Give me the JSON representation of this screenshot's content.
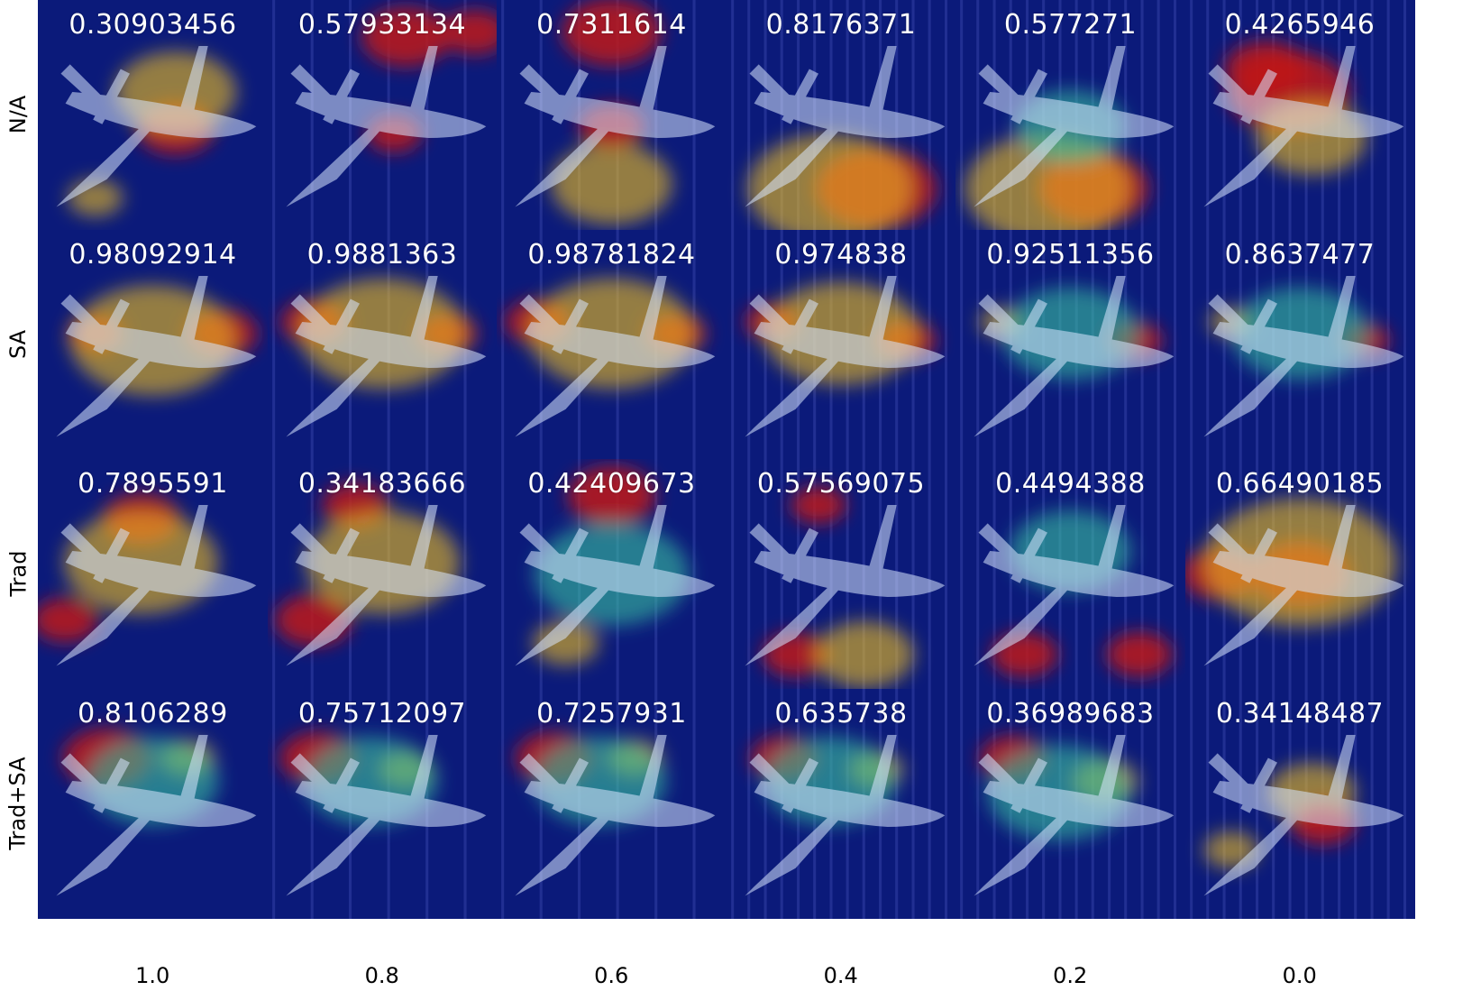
{
  "row_labels": [
    "N/A",
    "SA",
    "Trad",
    "Trad+SA"
  ],
  "col_labels": [
    "1.0",
    "0.8",
    "0.6",
    "0.4",
    "0.2",
    "0.0"
  ],
  "scores": [
    [
      "0.30903456",
      "0.57933134",
      "0.7311614",
      "0.8176371",
      "0.577271",
      "0.4265946"
    ],
    [
      "0.98092914",
      "0.9881363",
      "0.98781824",
      "0.974838",
      "0.92511356",
      "0.8637477"
    ],
    [
      "0.7895591",
      "0.34183666",
      "0.42409673",
      "0.57569075",
      "0.4494388",
      "0.66490185"
    ],
    [
      "0.8106289",
      "0.75712097",
      "0.7257931",
      "0.635738",
      "0.36989683",
      "0.34148487"
    ]
  ],
  "colors": {
    "background_dark": "#0b1a7a",
    "heat_hot": "#c01414",
    "heat_warm": "#f0c020",
    "heat_mid": "#36c0a0",
    "plane": "#d8e6ff"
  }
}
